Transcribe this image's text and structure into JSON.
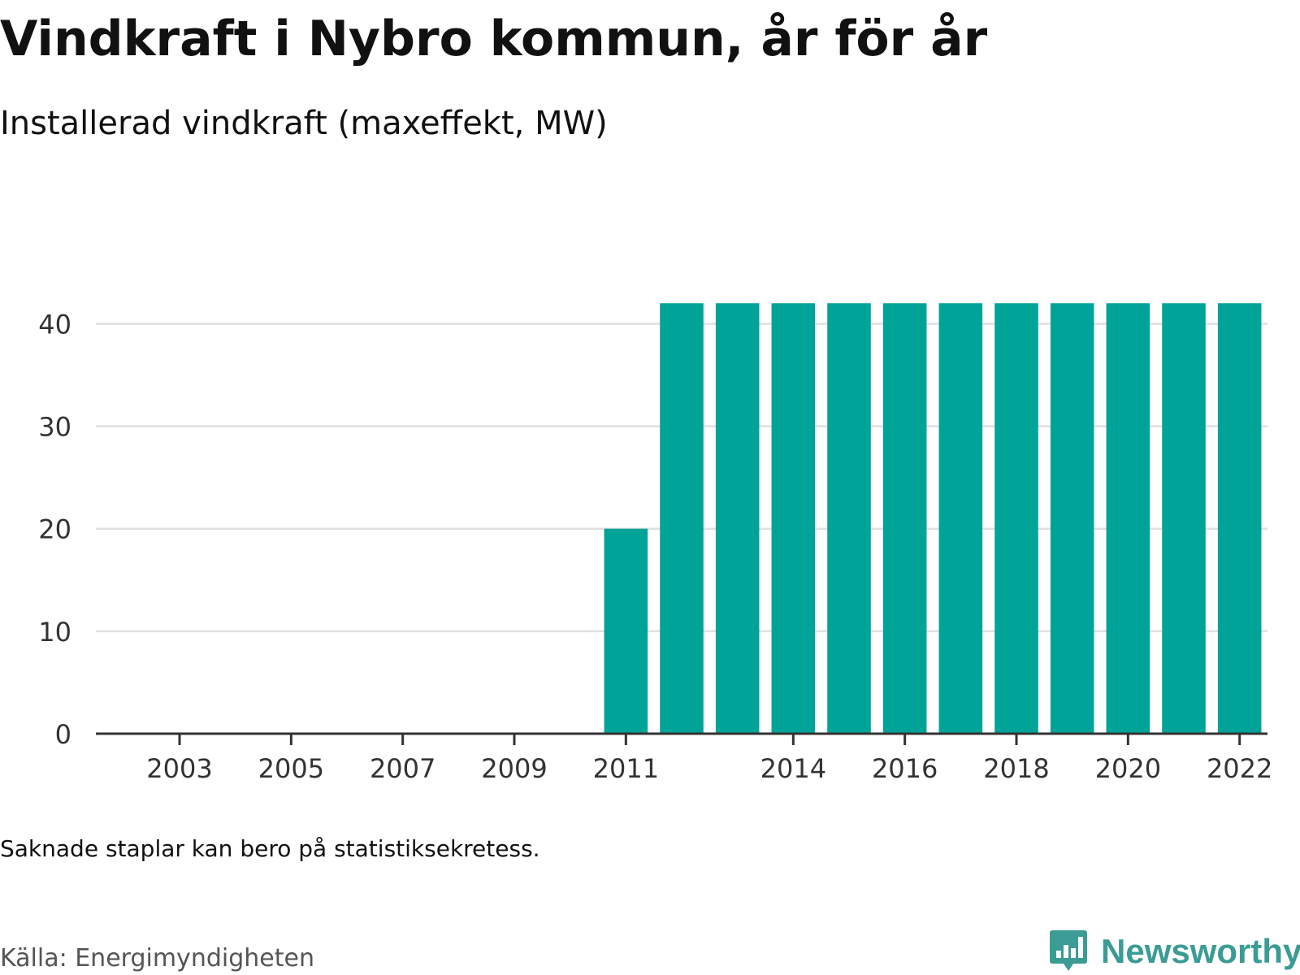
{
  "title": "Vindkraft i Nybro kommun, år för år",
  "subtitle": "Installerad vindkraft (maxeffekt, MW)",
  "note": "Saknade staplar kan bero på statistiksekretess.",
  "source": "Källa: Energimyndigheten",
  "brand": {
    "name": "Newsworthy",
    "logo_icon": "newsworthy-chart-bubble-icon"
  },
  "colors": {
    "bar": "#00a398",
    "grid": "#e0e0e0",
    "axis": "#333333",
    "brand": "#3a9c94"
  },
  "chart_data": {
    "type": "bar",
    "categories": [
      "2002",
      "2003",
      "2004",
      "2005",
      "2006",
      "2007",
      "2008",
      "2009",
      "2010",
      "2011",
      "2012",
      "2013",
      "2014",
      "2015",
      "2016",
      "2017",
      "2018",
      "2019",
      "2020",
      "2021",
      "2022"
    ],
    "values": [
      0,
      0,
      0,
      0,
      0,
      0,
      0,
      0,
      0,
      20,
      42,
      42,
      42,
      42,
      42,
      42,
      42,
      42,
      42,
      42,
      42
    ],
    "x_tick_labels": [
      "2003",
      "2005",
      "2007",
      "2009",
      "2011",
      "2014",
      "2016",
      "2018",
      "2020",
      "2022"
    ],
    "y_ticks": [
      0,
      10,
      20,
      30,
      40
    ],
    "ylim": [
      0,
      44
    ],
    "title": "Vindkraft i Nybro kommun, år för år",
    "subtitle": "Installerad vindkraft (maxeffekt, MW)",
    "xlabel": "",
    "ylabel": "",
    "grid": true,
    "legend": "none"
  }
}
